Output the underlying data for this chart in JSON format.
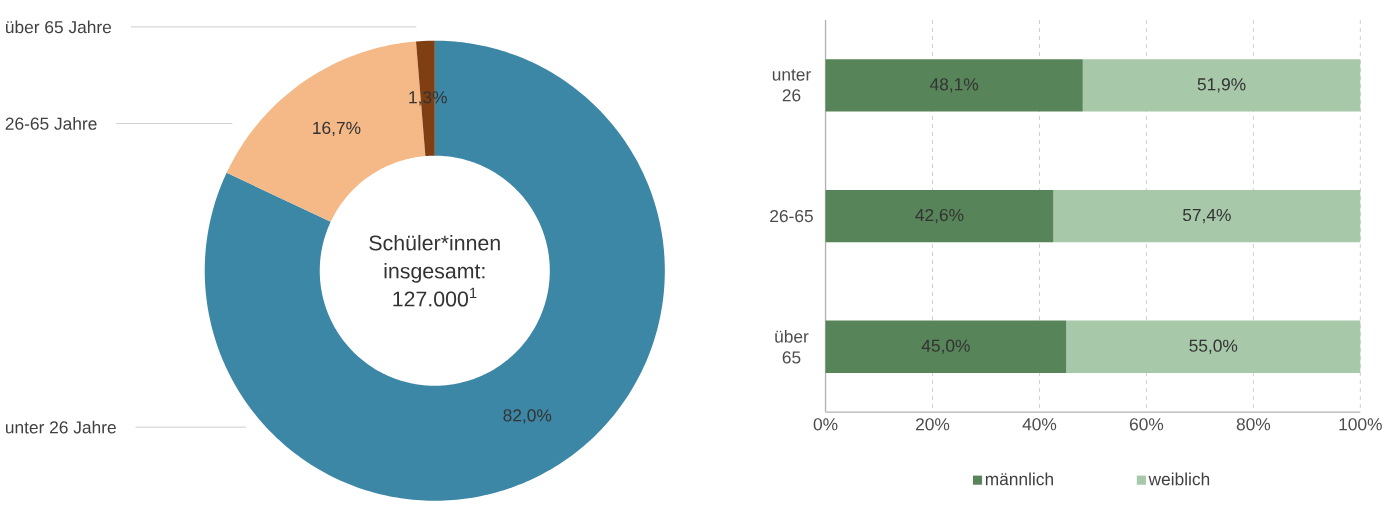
{
  "chart_data": [
    {
      "type": "donut",
      "categories": [
        "unter 26 Jahre",
        "26-65 Jahre",
        "über 65 Jahre"
      ],
      "values": [
        82.0,
        16.7,
        1.3
      ],
      "colors": [
        "#3d87a6",
        "#f5b987",
        "#7f3f12"
      ],
      "value_labels": [
        "82,0%",
        "16,7%",
        "1,3%"
      ],
      "annotations": [
        "Schüler*innen insgesamt: 127.000$^{1}$"
      ]
    },
    {
      "type": "bar",
      "orientation": "horizontal",
      "stacked": true,
      "categories": [
        "unter 26",
        "26-65",
        "über 65"
      ],
      "series": [
        {
          "name": "männlich",
          "color": "#578458",
          "values": [
            48.1,
            42.6,
            45.0
          ],
          "value_labels": [
            "48,1%",
            "42,6%",
            "45,0%"
          ]
        },
        {
          "name": "weiblich",
          "color": "#a8c8aa",
          "values": [
            51.9,
            57.4,
            55.0
          ],
          "value_labels": [
            "51,9%",
            "57,4%",
            "55,0%"
          ]
        }
      ],
      "xlim": [
        0,
        100
      ],
      "xticks": [
        {
          "value": 0,
          "label": "0%"
        },
        {
          "value": 20,
          "label": "20%"
        },
        {
          "value": 40,
          "label": "40%"
        },
        {
          "value": 60,
          "label": "60%"
        },
        {
          "value": 80,
          "label": "80%"
        },
        {
          "value": 100,
          "label": "100%"
        }
      ],
      "grid": "x",
      "legend": "bottom"
    }
  ]
}
